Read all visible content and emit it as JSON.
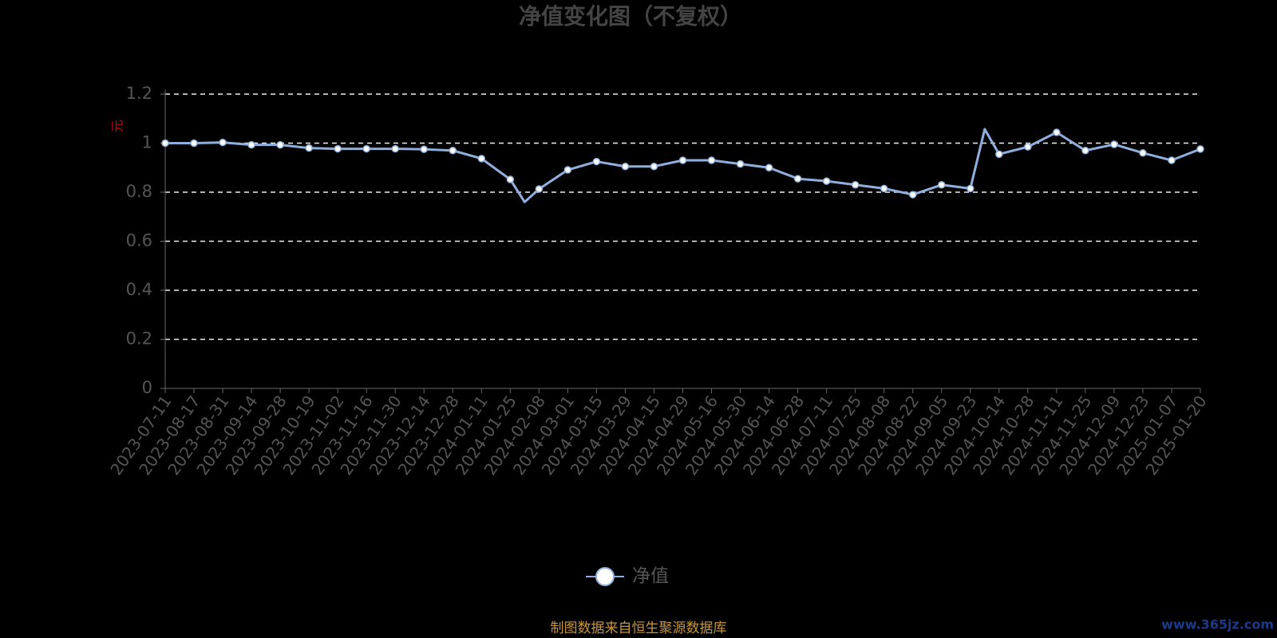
{
  "chart_data": {
    "type": "line",
    "title": "净值变化图（不复权）",
    "y_label": "元",
    "categories": [
      "2023-07-11",
      "2023-08-17",
      "2023-08-31",
      "2023-09-14",
      "2023-09-28",
      "2023-10-19",
      "2023-11-02",
      "2023-11-16",
      "2023-11-30",
      "2023-12-14",
      "2023-12-28",
      "2024-01-11",
      "2024-01-25",
      null,
      "2024-02-08",
      "2024-03-01",
      "2024-03-15",
      "2024-03-29",
      "2024-04-15",
      "2024-04-29",
      "2024-05-16",
      "2024-05-30",
      "2024-06-14",
      "2024-06-28",
      "2024-07-11",
      "2024-07-25",
      "2024-08-08",
      "2024-08-22",
      "2024-09-05",
      "2024-09-23",
      null,
      "2024-10-14",
      "2024-10-28",
      "2024-11-11",
      "2024-11-25",
      "2024-12-09",
      "2024-12-23",
      "2025-01-07",
      "2025-01-20"
    ],
    "series": [
      {
        "name": "净值",
        "color": "#8fb0de",
        "values": [
          1.0,
          1.0,
          1.003,
          0.993,
          0.993,
          0.98,
          0.977,
          0.977,
          0.977,
          0.975,
          0.97,
          0.937,
          0.852,
          0.76,
          0.813,
          0.891,
          0.925,
          0.905,
          0.905,
          0.93,
          0.93,
          0.915,
          0.9,
          0.855,
          0.845,
          0.83,
          0.815,
          0.79,
          0.83,
          0.815,
          1.057,
          0.955,
          0.985,
          1.044,
          0.97,
          0.995,
          0.96,
          0.93,
          0.976
        ]
      }
    ],
    "ylim": [
      0,
      1.2
    ],
    "yticks": [
      0,
      0.2,
      0.4,
      0.6,
      0.8,
      1,
      1.2
    ],
    "grid": true,
    "legend": "bottom",
    "source": "制图数据来自恒生聚源数据库",
    "watermark": "www.365jz.com"
  }
}
